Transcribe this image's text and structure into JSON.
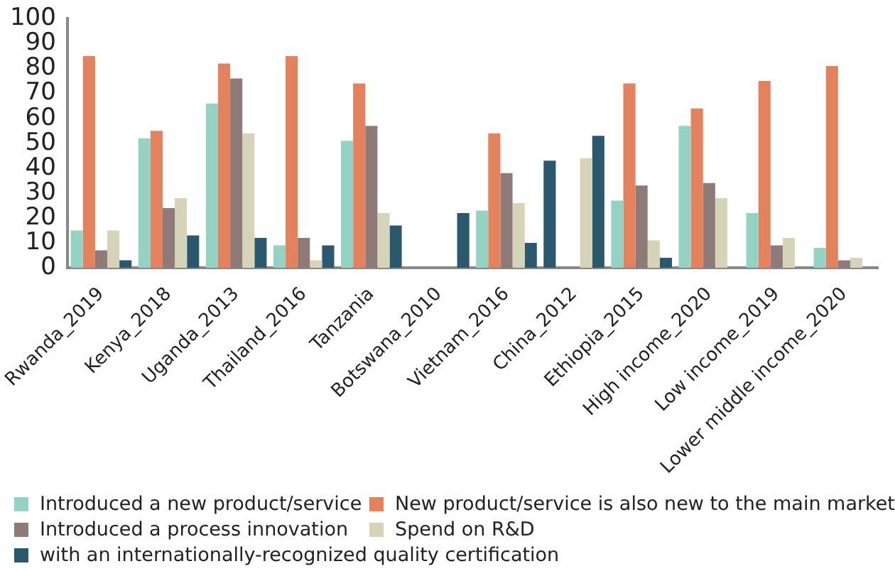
{
  "chart_data": {
    "type": "bar",
    "categories": [
      "Rwanda_2019",
      "Kenya_2018",
      "Uganda_2013",
      "Thailand_2016",
      "Tanzania",
      "Botswana_2010",
      "Vietnam_2016",
      "China_2012",
      "Ethiopia_2015",
      "High income_2020",
      "Low income_2019",
      "Lower middle income_2020"
    ],
    "series": [
      {
        "name": "Introduced a new product/service",
        "color": "#94d3c3",
        "colors": [
          "#94d3c3",
          "#94d3c3",
          "#94d3c3",
          "#94d3c3",
          "#94d3c3",
          "#94d3c3",
          "#94d3c3",
          "#2a596e",
          "#94d3c3",
          "#94d3c3",
          "#94d3c3",
          "#94d3c3"
        ],
        "values": [
          15,
          52,
          66,
          9,
          51,
          null,
          23,
          43,
          27,
          57,
          22,
          8
        ]
      },
      {
        "name": "New product/service is also new to the main market",
        "color": "#e5825e",
        "values": [
          85,
          55,
          82,
          85,
          74,
          null,
          54,
          null,
          74,
          64,
          75,
          81
        ]
      },
      {
        "name": "Introduced a process innovation",
        "color": "#8e7b78",
        "values": [
          7,
          24,
          76,
          12,
          57,
          null,
          38,
          null,
          33,
          34,
          9,
          3
        ]
      },
      {
        "name": "Spend on R&D",
        "color": "#d5d3b8",
        "values": [
          15,
          28,
          54,
          3,
          22,
          null,
          26,
          44,
          11,
          28,
          12,
          4
        ]
      },
      {
        "name": "with an internationally-recognized quality certification",
        "color": "#2a596e",
        "values": [
          3,
          13,
          12,
          9,
          17,
          22,
          10,
          53,
          4,
          null,
          null,
          null
        ]
      }
    ],
    "ylim": [
      0,
      100
    ],
    "yticks": [
      0,
      10,
      20,
      30,
      40,
      50,
      60,
      70,
      80,
      90,
      100
    ],
    "grid": false,
    "legend": "bottom"
  }
}
